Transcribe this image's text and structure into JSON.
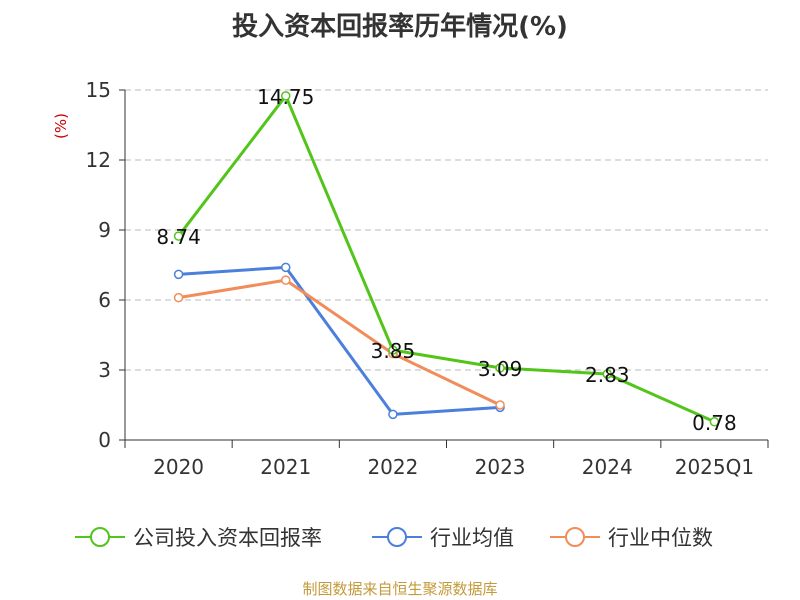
{
  "chart_data": {
    "type": "line",
    "title": "投入资本回报率历年情况(%)",
    "ylabel": "(%)",
    "xlabel": "",
    "categories": [
      "2020",
      "2021",
      "2022",
      "2023",
      "2024",
      "2025Q1"
    ],
    "ylim": [
      0,
      15
    ],
    "yticks": [
      0,
      3,
      6,
      9,
      12,
      15
    ],
    "grid": true,
    "legend_position": "bottom",
    "series": [
      {
        "name": "公司投入资本回报率",
        "color": "#52c41a",
        "values": [
          8.74,
          14.75,
          3.85,
          3.09,
          2.83,
          0.78
        ],
        "labels": [
          "8.74",
          "14.75",
          "3.85",
          "3.09",
          "2.83",
          "0.78"
        ]
      },
      {
        "name": "行业均值",
        "color": "#4a7fdc",
        "values": [
          7.1,
          7.4,
          1.1,
          1.4,
          null,
          null
        ]
      },
      {
        "name": "行业中位数",
        "color": "#f28c5a",
        "values": [
          6.1,
          6.85,
          3.7,
          1.5,
          null,
          null
        ]
      }
    ]
  },
  "source": "制图数据来自恒生聚源数据库"
}
